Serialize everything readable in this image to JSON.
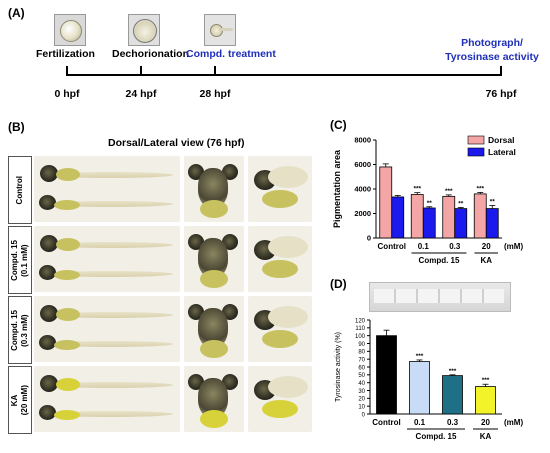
{
  "panelA": {
    "label": "(A)",
    "stages": [
      {
        "name": "Fertilization",
        "time": "0 hpf",
        "highlight": false
      },
      {
        "name": "Dechorionation",
        "time": "24 hpf",
        "highlight": false
      },
      {
        "name": "Compd. treatment",
        "time": "28 hpf",
        "highlight": true
      },
      {
        "name": "Photograph/\nTyrosinase activity",
        "time": "76 hpf",
        "highlight": true
      }
    ],
    "end_label_line1": "Photograph/",
    "end_label_line2": "Tyrosinase activity"
  },
  "panelB": {
    "label": "(B)",
    "title": "Dorsal/Lateral view (76 hpf)",
    "rows": [
      {
        "line1": "Control",
        "line2": ""
      },
      {
        "line1": "Compd. 15",
        "line2": "(0.1 mM)"
      },
      {
        "line1": "Compd. 15",
        "line2": "(0.3 mM)"
      },
      {
        "line1": "KA",
        "line2": "(20 mM)"
      }
    ]
  },
  "panelC": {
    "label": "(C)"
  },
  "panelD": {
    "label": "(D)"
  },
  "chart_data": [
    {
      "type": "bar",
      "panel": "C",
      "categories": [
        "Control",
        "0.1",
        "0.3",
        "20"
      ],
      "group_labels": [
        {
          "text": "Compd. 15",
          "span": [
            1,
            2
          ]
        },
        {
          "text": "KA",
          "span": [
            3,
            3
          ]
        }
      ],
      "unit_label": "(mM)",
      "ylabel": "Pigmentation area",
      "ylim": [
        0,
        8000
      ],
      "yticks": [
        0,
        2000,
        4000,
        6000,
        8000
      ],
      "series": [
        {
          "name": "Dorsal",
          "color": "#f4a6a6",
          "values": [
            5800,
            3550,
            3400,
            3600
          ],
          "errors": [
            250,
            150,
            120,
            120
          ],
          "sig": [
            "",
            "***",
            "***",
            "***"
          ]
        },
        {
          "name": "Lateral",
          "color": "#1a1aee",
          "values": [
            3350,
            2450,
            2400,
            2400
          ],
          "errors": [
            120,
            100,
            100,
            250
          ],
          "sig": [
            "",
            "**",
            "**",
            "**"
          ]
        }
      ],
      "legend": "top-right"
    },
    {
      "type": "bar",
      "panel": "D",
      "categories": [
        "Control",
        "0.1",
        "0.3",
        "20"
      ],
      "group_labels": [
        {
          "text": "Compd. 15",
          "span": [
            1,
            2
          ]
        },
        {
          "text": "KA",
          "span": [
            3,
            3
          ]
        }
      ],
      "unit_label": "(mM)",
      "ylabel": "Tyrosinase activity (%)",
      "ylim": [
        0,
        120
      ],
      "yticks": [
        0,
        10,
        20,
        30,
        40,
        50,
        60,
        70,
        80,
        90,
        100,
        110,
        120
      ],
      "series": [
        {
          "name": "",
          "colors": [
            "#000000",
            "#c9dcf7",
            "#1f6f86",
            "#f3f32a"
          ],
          "values": [
            100,
            67,
            49,
            35
          ],
          "errors": [
            7,
            2,
            1,
            3
          ],
          "sig": [
            "",
            "***",
            "***",
            "***"
          ]
        }
      ]
    }
  ]
}
